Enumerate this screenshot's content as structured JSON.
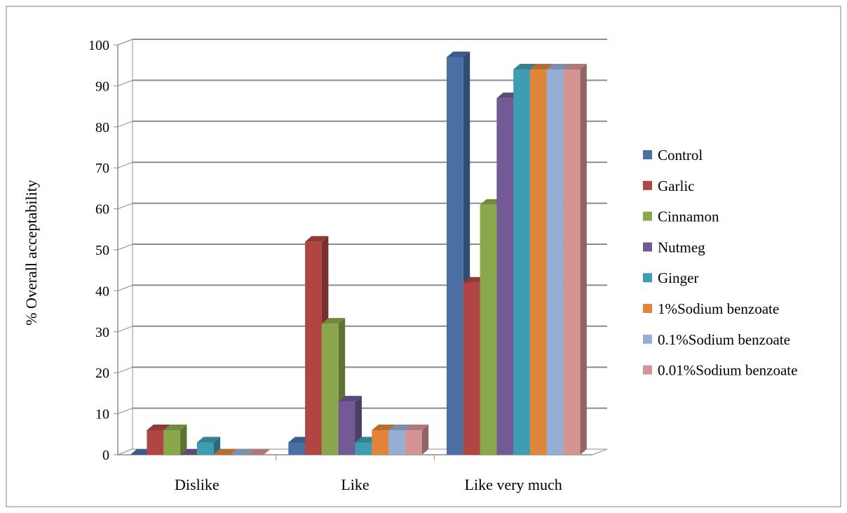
{
  "chart_data": {
    "type": "bar",
    "style": "3d-clustered-column",
    "ylabel": "% Overall acceptability",
    "xlabel": "",
    "ylim": [
      0,
      100
    ],
    "y_ticks": [
      "0",
      "10",
      "20",
      "30",
      "40",
      "50",
      "60",
      "70",
      "80",
      "90",
      "100"
    ],
    "grid": true,
    "legend_position": "right",
    "categories": [
      "Dislike",
      "Like",
      "Like very much"
    ],
    "series": [
      {
        "name": "Control",
        "color": "#4a6fa5",
        "values": [
          0,
          3,
          97
        ]
      },
      {
        "name": "Garlic",
        "color": "#b04643",
        "values": [
          6,
          52,
          42
        ]
      },
      {
        "name": "Cinnamon",
        "color": "#8aa84b",
        "values": [
          6,
          32,
          61
        ]
      },
      {
        "name": "Nutmeg",
        "color": "#735a94",
        "values": [
          0,
          13,
          87
        ]
      },
      {
        "name": "Ginger",
        "color": "#3f9db3",
        "values": [
          3,
          3,
          94
        ]
      },
      {
        "name": "1%Sodium benzoate",
        "color": "#e0853a",
        "values": [
          0,
          6,
          94
        ]
      },
      {
        "name": "0.1%Sodium benzoate",
        "color": "#97aed4",
        "values": [
          0,
          6,
          94
        ]
      },
      {
        "name": "0.01%Sodium benzoate",
        "color": "#d49493",
        "values": [
          0,
          6,
          94
        ]
      }
    ]
  }
}
